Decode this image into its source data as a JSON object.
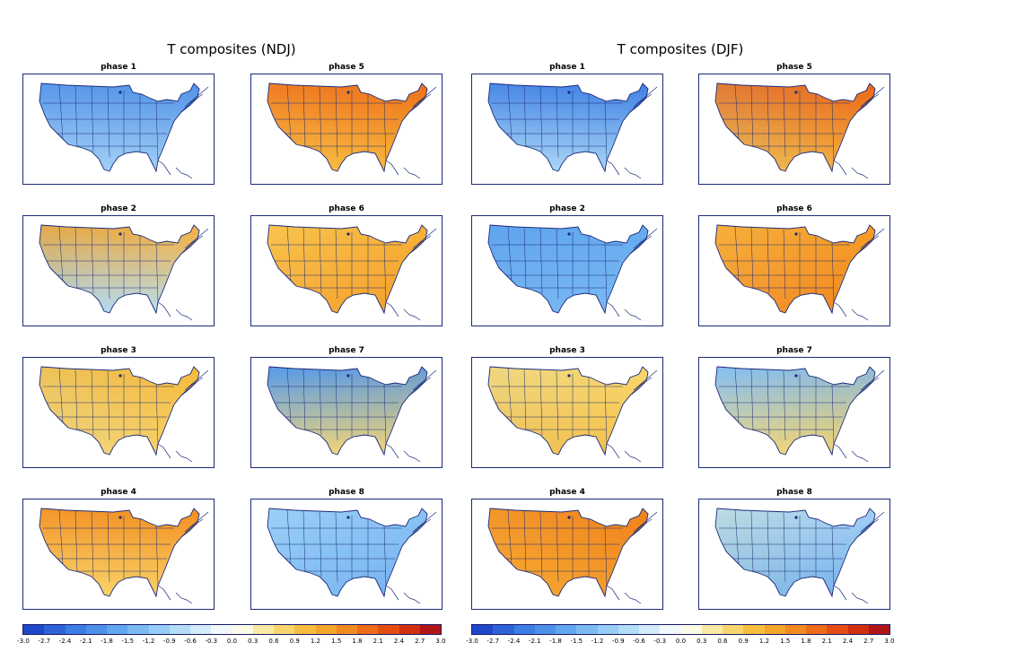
{
  "figure_titles": [
    "T composites (NDJ)",
    "T composites (DJF)"
  ],
  "colorbar": {
    "tick_labels": [
      "-3.0",
      "-2.7",
      "-2.4",
      "-2.1",
      "-1.8",
      "-1.5",
      "-1.2",
      "-0.9",
      "-0.6",
      "-0.3",
      "0.0",
      "0.3",
      "0.6",
      "0.9",
      "1.2",
      "1.5",
      "1.8",
      "2.1",
      "2.4",
      "2.7",
      "3.0"
    ],
    "colors": [
      "#1f47c9",
      "#2e63d8",
      "#3c7de3",
      "#4c92e8",
      "#62a7ee",
      "#7cbaf3",
      "#97cdf6",
      "#b3ddf7",
      "#d2ecfa",
      "#f2f8fc",
      "#fdfbe6",
      "#fbeaa4",
      "#f9d66d",
      "#f7bd3e",
      "#f5a52a",
      "#f28a1e",
      "#ee6c17",
      "#e54e12",
      "#d1300e",
      "#b01616"
    ]
  },
  "panels": [
    {
      "season": "NDJ",
      "label": "phase 1",
      "n": "#4d8fe6",
      "s": "#a8d4f6",
      "e": "#6aa8ee",
      "w": "#9acbf4"
    },
    {
      "season": "NDJ",
      "label": "phase 5",
      "n": "#ee6c17",
      "s": "#f7bd3e",
      "e": "#f28a1e",
      "w": "#f9d66d"
    },
    {
      "season": "NDJ",
      "label": "phase 2",
      "n": "#f5a52a",
      "s": "#b3ddf7",
      "e": "#fbeaa4",
      "w": "#7cbaf3"
    },
    {
      "season": "NDJ",
      "label": "phase 6",
      "n": "#f7bd3e",
      "s": "#f5a52a",
      "e": "#ee6c17",
      "w": "#fbeaa4"
    },
    {
      "season": "NDJ",
      "label": "phase 3",
      "n": "#f7bd3e",
      "s": "#f9d66d",
      "e": "#f5a52a",
      "w": "#b3ddf7"
    },
    {
      "season": "NDJ",
      "label": "phase 7",
      "n": "#4c92e8",
      "s": "#f9d66d",
      "e": "#f9d66d",
      "w": "#97cdf6"
    },
    {
      "season": "NDJ",
      "label": "phase 4",
      "n": "#f28a1e",
      "s": "#f9d66d",
      "e": "#f5a52a",
      "w": "#f9d66d"
    },
    {
      "season": "NDJ",
      "label": "phase 8",
      "n": "#97cdf6",
      "s": "#7cbaf3",
      "e": "#3c7de3",
      "w": "#b3ddf7"
    },
    {
      "season": "DJF",
      "label": "phase 1",
      "n": "#3c7de3",
      "s": "#b3ddf7",
      "e": "#4c92e8",
      "w": "#97cdf6"
    },
    {
      "season": "DJF",
      "label": "phase 5",
      "n": "#ee6c17",
      "s": "#f7bd3e",
      "e": "#e54e12",
      "w": "#97cdf6"
    },
    {
      "season": "DJF",
      "label": "phase 2",
      "n": "#62a7ee",
      "s": "#7cbaf3",
      "e": "#7cbaf3",
      "w": "#4c92e8"
    },
    {
      "season": "DJF",
      "label": "phase 6",
      "n": "#f5a52a",
      "s": "#f28a1e",
      "e": "#ee6c17",
      "w": "#fbeaa4"
    },
    {
      "season": "DJF",
      "label": "phase 3",
      "n": "#f9d66d",
      "s": "#f7bd3e",
      "e": "#f9d66d",
      "w": "#b3ddf7"
    },
    {
      "season": "DJF",
      "label": "phase 7",
      "n": "#7cbaf3",
      "s": "#f9d66d",
      "e": "#f7bd3e",
      "w": "#b3ddf7"
    },
    {
      "season": "DJF",
      "label": "phase 4",
      "n": "#f28a1e",
      "s": "#f5a52a",
      "e": "#e54e12",
      "w": "#f9d66d"
    },
    {
      "season": "DJF",
      "label": "phase 8",
      "n": "#b3ddf7",
      "s": "#7cbaf3",
      "e": "#3c7de3",
      "w": "#f9d66d"
    }
  ]
}
